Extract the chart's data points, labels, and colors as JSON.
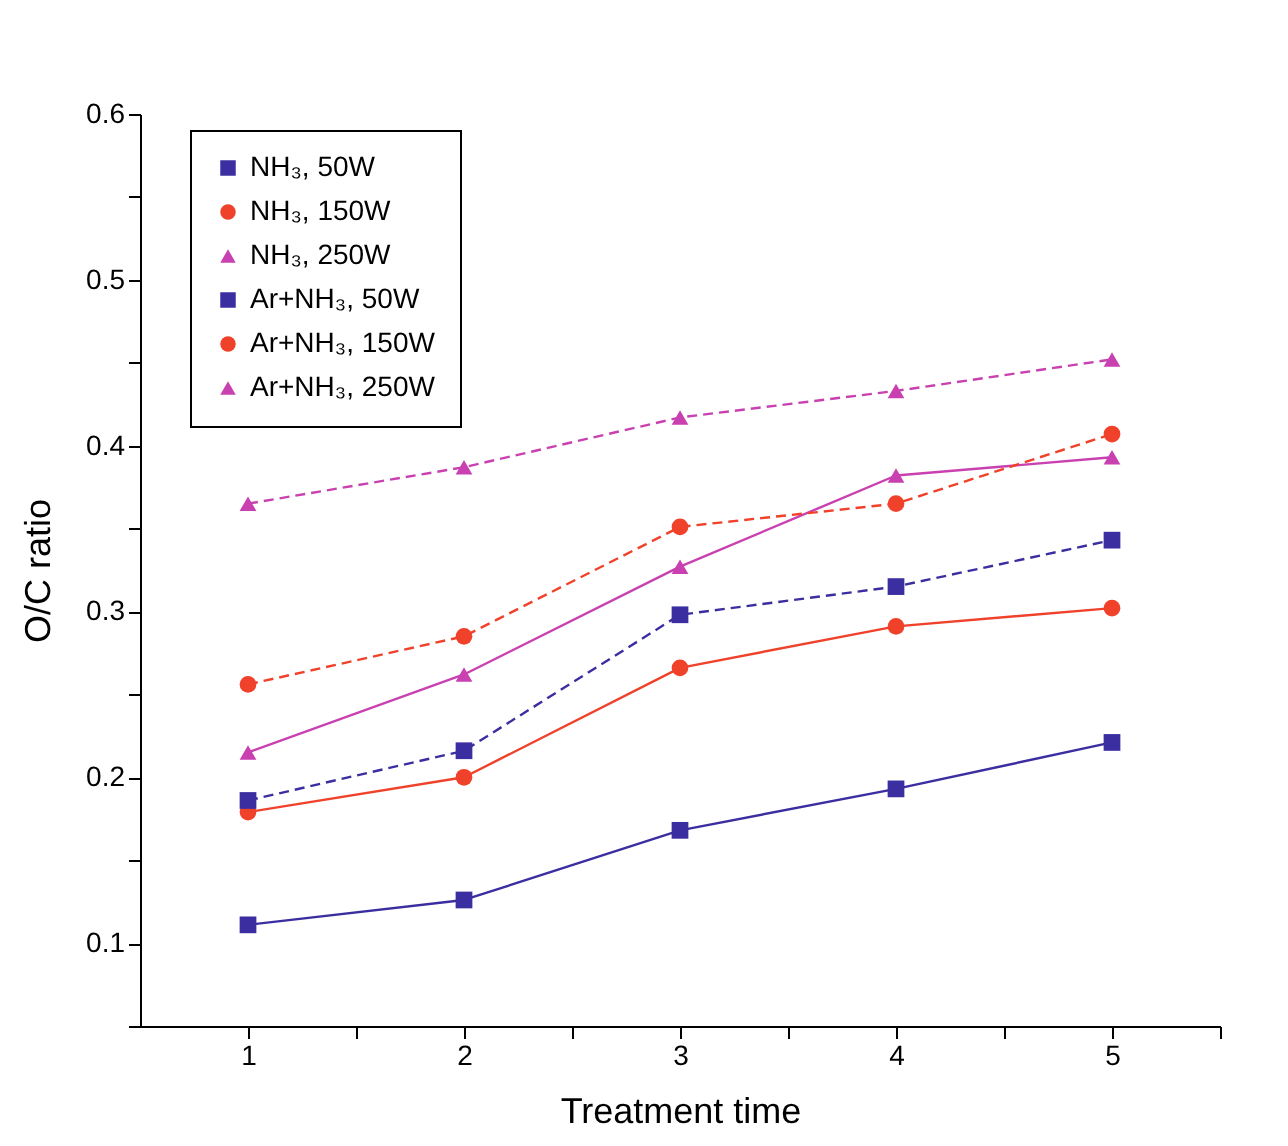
{
  "chart_data": {
    "type": "line",
    "xlabel": "Treatment time",
    "ylabel": "O/C ratio",
    "x": [
      1,
      2,
      3,
      4,
      5
    ],
    "xlim": [
      0.5,
      5.5
    ],
    "xticks": [
      1,
      {
        "value": 1.5,
        "label": null
      },
      2,
      {
        "value": 2.5,
        "label": null
      },
      3,
      {
        "value": 3.5,
        "label": null
      },
      4,
      {
        "value": 4.5,
        "label": null
      },
      5,
      {
        "value": 5.5,
        "label": null
      }
    ],
    "ylim": [
      0.05,
      0.6
    ],
    "yticks": [
      {
        "value": 0.05,
        "label": null
      },
      0.1,
      {
        "value": 0.15,
        "label": null
      },
      0.2,
      {
        "value": 0.25,
        "label": null
      },
      0.3,
      {
        "value": 0.35,
        "label": null
      },
      0.4,
      {
        "value": 0.45,
        "label": null
      },
      0.5,
      {
        "value": 0.55,
        "label": null
      },
      0.6
    ],
    "grid": false,
    "legend": "top left",
    "series": [
      {
        "name": "NH₃, 50W",
        "color": "#3b2ea0",
        "marker": "square",
        "line_style": "solid",
        "values": [
          0.111,
          0.126,
          0.168,
          0.193,
          0.221
        ]
      },
      {
        "name": "NH₃, 150W",
        "color": "#f0412a",
        "marker": "circle",
        "line_style": "solid",
        "values": [
          0.179,
          0.2,
          0.266,
          0.291,
          0.302
        ]
      },
      {
        "name": "NH₃, 250W",
        "color": "#c940b0",
        "marker": "triangle",
        "line_style": "solid",
        "values": [
          0.215,
          0.262,
          0.327,
          0.382,
          0.393
        ]
      },
      {
        "name": "Ar+NH₃, 50W",
        "color": "#3b2ea0",
        "marker": "square",
        "line_style": "dashed",
        "values": [
          0.186,
          0.216,
          0.298,
          0.315,
          0.343
        ]
      },
      {
        "name": "Ar+NH₃, 150W",
        "color": "#f0412a",
        "marker": "circle",
        "line_style": "dashed",
        "values": [
          0.256,
          0.285,
          0.351,
          0.365,
          0.407
        ]
      },
      {
        "name": "Ar+NH₃, 250W",
        "color": "#c940b0",
        "marker": "triangle",
        "line_style": "dashed",
        "values": [
          0.365,
          0.387,
          0.417,
          0.433,
          0.452
        ]
      }
    ]
  }
}
